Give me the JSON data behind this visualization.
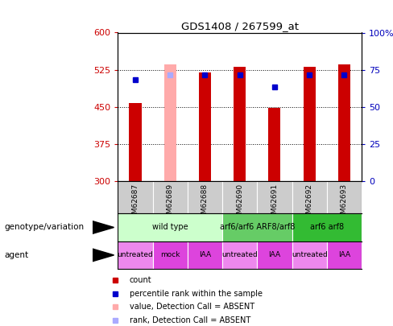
{
  "title": "GDS1408 / 267599_at",
  "samples": [
    "GSM62687",
    "GSM62689",
    "GSM62688",
    "GSM62690",
    "GSM62691",
    "GSM62692",
    "GSM62693"
  ],
  "bar_values": [
    457,
    535,
    520,
    530,
    447,
    530,
    535
  ],
  "bar_colors": [
    "#cc0000",
    "#ffaaaa",
    "#cc0000",
    "#cc0000",
    "#cc0000",
    "#cc0000",
    "#cc0000"
  ],
  "percentile_values": [
    505,
    515,
    515,
    515,
    490,
    515,
    515
  ],
  "percentile_colors": [
    "#0000cc",
    "#aaaaff",
    "#0000cc",
    "#0000cc",
    "#0000cc",
    "#0000cc",
    "#0000cc"
  ],
  "ymin": 300,
  "ymax": 600,
  "yticks_left": [
    300,
    375,
    450,
    525,
    600
  ],
  "yticks_right_vals": [
    0,
    25,
    50,
    75,
    100
  ],
  "genotype_groups": [
    {
      "label": "wild type",
      "span": [
        0,
        2
      ],
      "color": "#ccffcc"
    },
    {
      "label": "arf6/arf6 ARF8/arf8",
      "span": [
        3,
        4
      ],
      "color": "#66cc66"
    },
    {
      "label": "arf6 arf8",
      "span": [
        5,
        6
      ],
      "color": "#33bb33"
    }
  ],
  "agent_groups": [
    {
      "label": "untreated",
      "span": [
        0,
        0
      ],
      "color": "#ee88ee"
    },
    {
      "label": "mock",
      "span": [
        1,
        1
      ],
      "color": "#dd44dd"
    },
    {
      "label": "IAA",
      "span": [
        2,
        2
      ],
      "color": "#dd44dd"
    },
    {
      "label": "untreated",
      "span": [
        3,
        3
      ],
      "color": "#ee88ee"
    },
    {
      "label": "IAA",
      "span": [
        4,
        4
      ],
      "color": "#dd44dd"
    },
    {
      "label": "untreated",
      "span": [
        5,
        5
      ],
      "color": "#ee88ee"
    },
    {
      "label": "IAA",
      "span": [
        6,
        6
      ],
      "color": "#dd44dd"
    }
  ],
  "legend_items": [
    {
      "label": "count",
      "color": "#cc0000"
    },
    {
      "label": "percentile rank within the sample",
      "color": "#0000cc"
    },
    {
      "label": "value, Detection Call = ABSENT",
      "color": "#ffaaaa"
    },
    {
      "label": "rank, Detection Call = ABSENT",
      "color": "#aaaaff"
    }
  ],
  "left_label_color": "#cc0000",
  "right_label_color": "#0000bb",
  "bar_width": 0.35,
  "sample_row_color": "#cccccc",
  "geno_colors": [
    "#ccffcc",
    "#66cc66",
    "#33bb33"
  ],
  "agent_light": "#ee88ee",
  "agent_dark": "#cc44cc"
}
